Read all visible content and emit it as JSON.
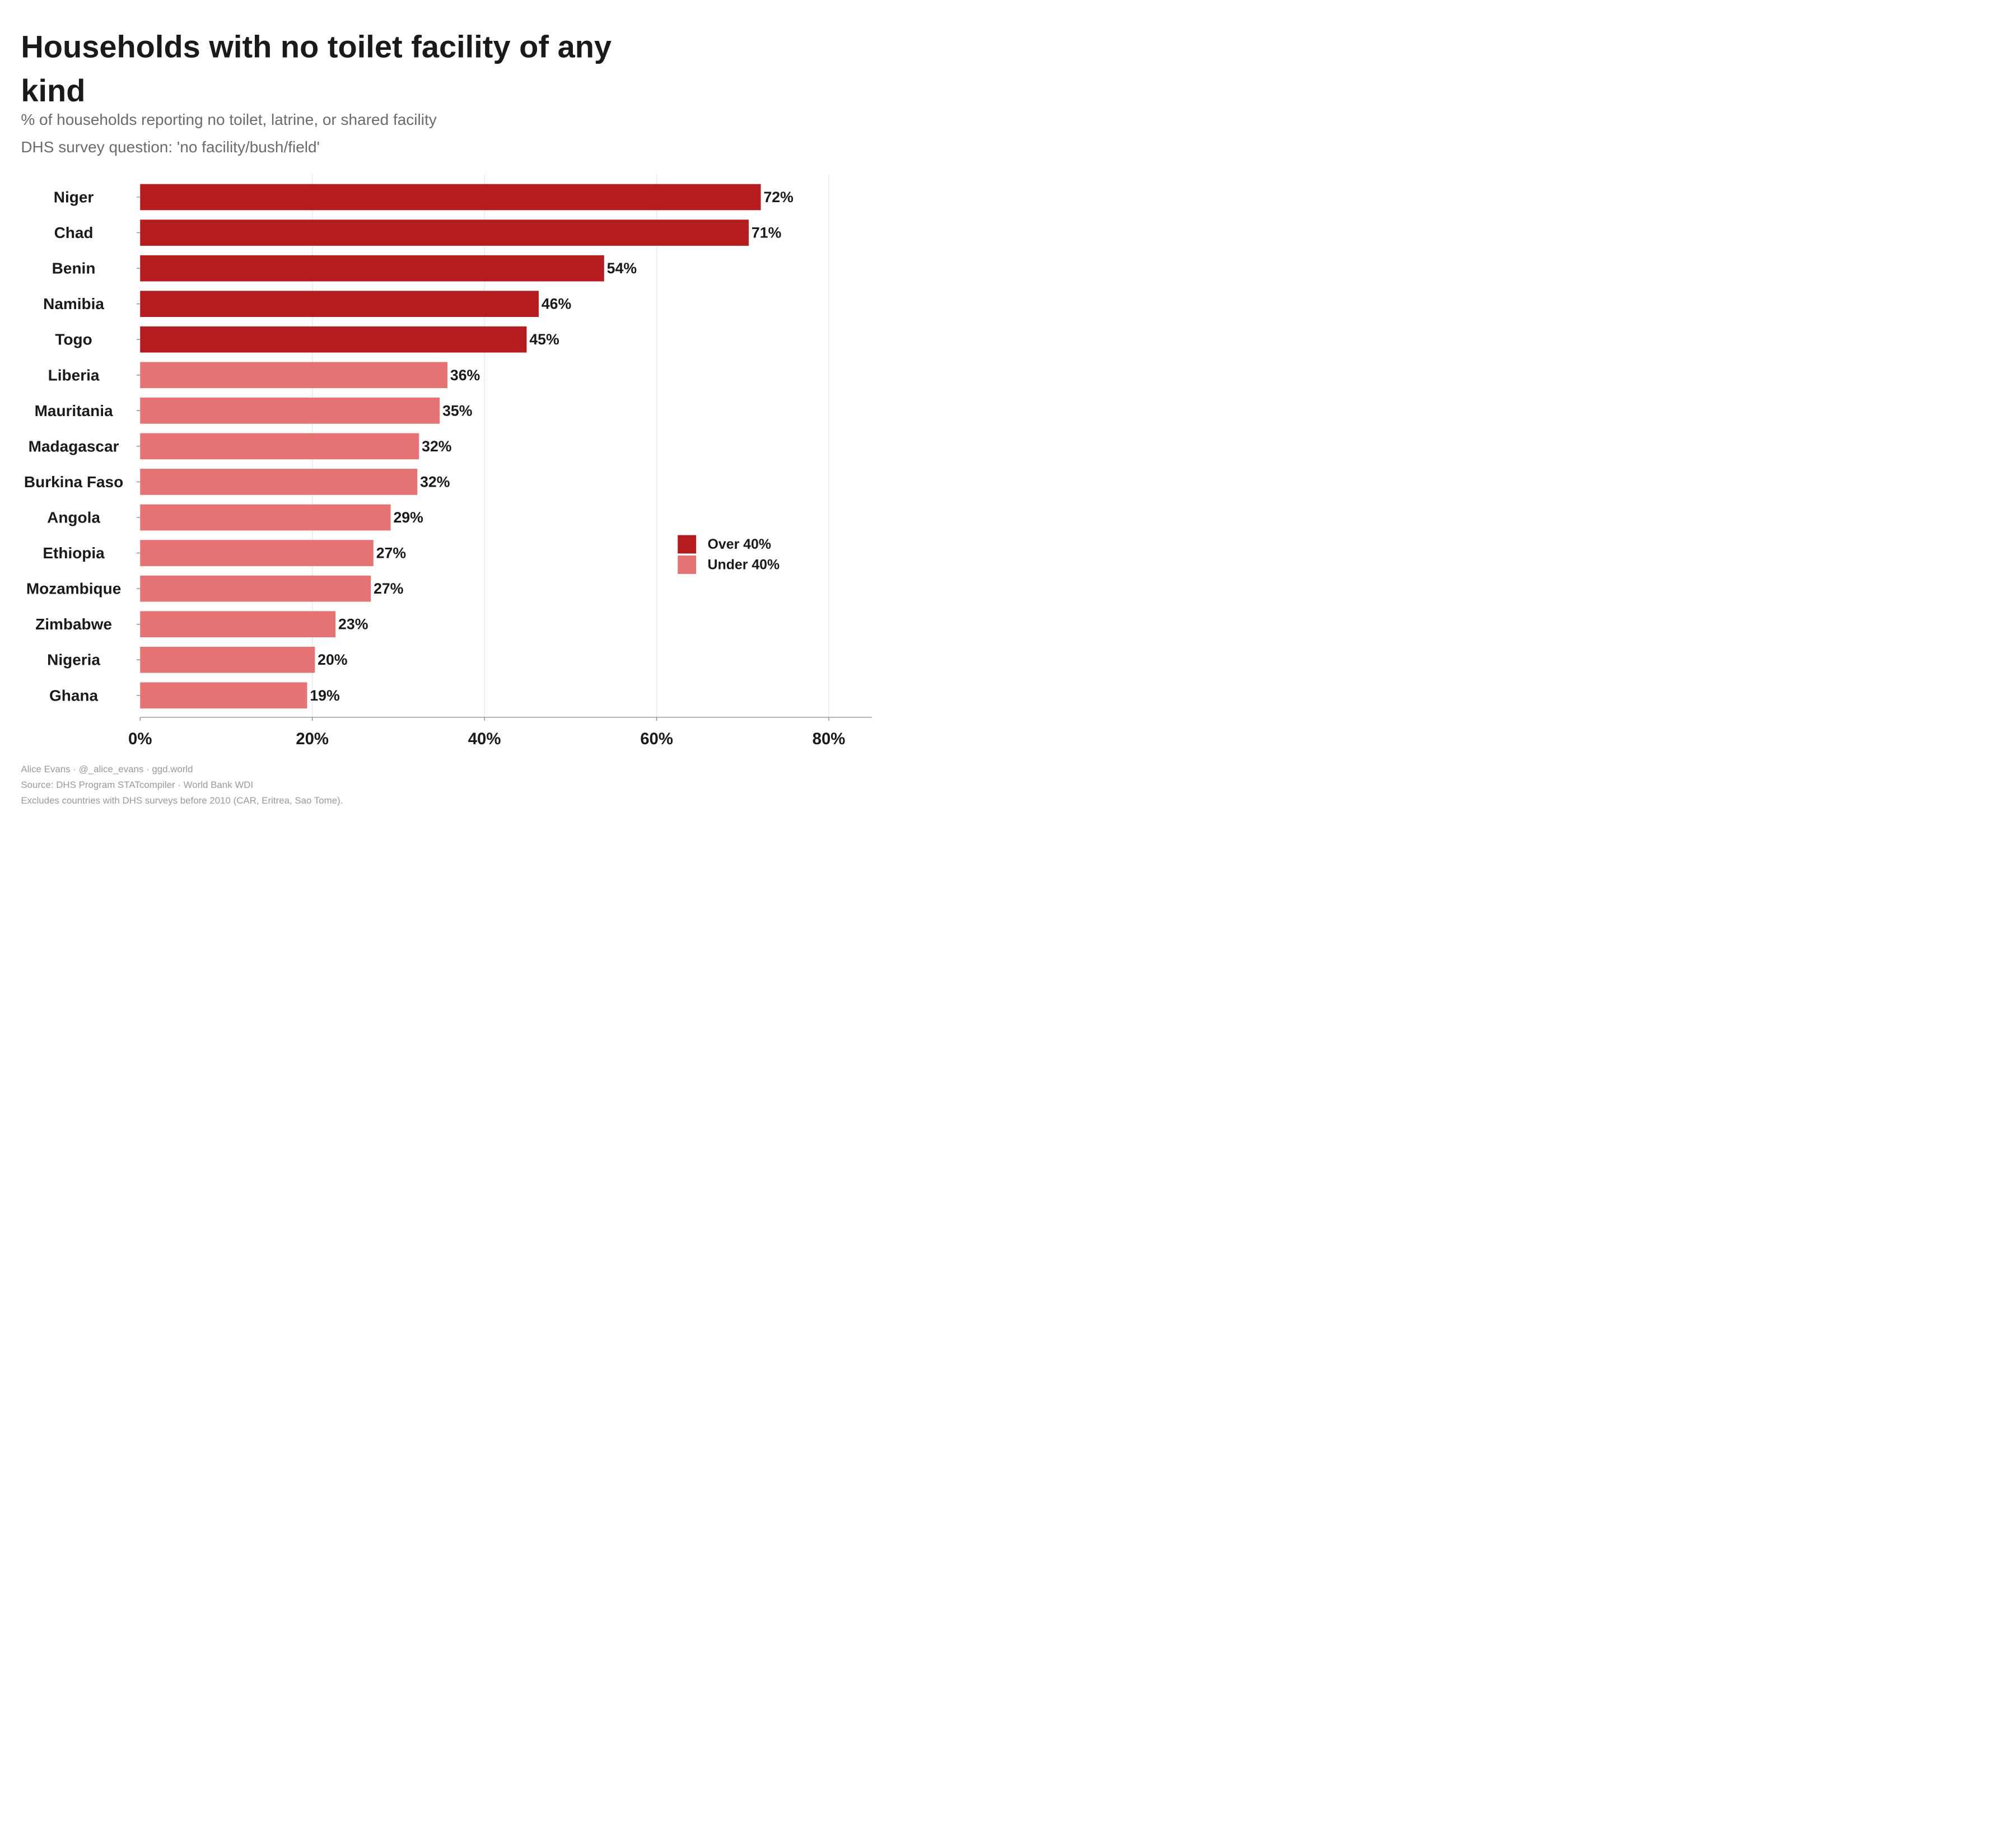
{
  "header": {
    "title": "Households with no toilet facility of any kind",
    "subtitle1": "% of households reporting no toilet, latrine, or shared facility",
    "subtitle2": "DHS survey question: 'no facility/bush/field'"
  },
  "colors": {
    "over": "#b51c1f",
    "under": "#e57373",
    "grid": "#e6e6e6",
    "axis": "#8a8a8a"
  },
  "chart_data": {
    "type": "bar",
    "orientation": "horizontal",
    "categories": [
      "Niger",
      "Chad",
      "Benin",
      "Namibia",
      "Togo",
      "Liberia",
      "Mauritania",
      "Madagascar",
      "Burkina Faso",
      "Angola",
      "Ethiopia",
      "Mozambique",
      "Zimbabwe",
      "Nigeria",
      "Ghana"
    ],
    "values": [
      72,
      71,
      54,
      46,
      45,
      36,
      35,
      32,
      32,
      29,
      27,
      27,
      23,
      20,
      19
    ],
    "exact_values": [
      72.1,
      70.7,
      53.9,
      46.3,
      44.9,
      35.7,
      34.8,
      32.4,
      32.2,
      29.1,
      27.1,
      26.8,
      22.7,
      20.3,
      19.4
    ],
    "groups": [
      "Over 40%",
      "Over 40%",
      "Over 40%",
      "Over 40%",
      "Over 40%",
      "Under 40%",
      "Under 40%",
      "Under 40%",
      "Under 40%",
      "Under 40%",
      "Under 40%",
      "Under 40%",
      "Under 40%",
      "Under 40%",
      "Under 40%"
    ],
    "value_labels": [
      "72%",
      "71%",
      "54%",
      "46%",
      "45%",
      "36%",
      "35%",
      "32%",
      "32%",
      "29%",
      "27%",
      "27%",
      "23%",
      "20%",
      "19%"
    ],
    "xlim": [
      0,
      85
    ],
    "xticks": [
      0,
      20,
      40,
      60,
      80
    ],
    "xtick_labels": [
      "0%",
      "20%",
      "40%",
      "60%",
      "80%"
    ],
    "xlabel": "",
    "ylabel": "",
    "grid": "vertical",
    "legend": {
      "position": "right",
      "entries": [
        {
          "label": "Over 40%",
          "color": "#b51c1f"
        },
        {
          "label": "Under 40%",
          "color": "#e57373"
        }
      ]
    }
  },
  "footer": {
    "credit": "Alice Evans · @_alice_evans · ggd.world",
    "source": "Source: DHS Program STATcompiler · World Bank WDI",
    "note": "Excludes countries with DHS surveys before 2010 (CAR, Eritrea, Sao Tome)."
  }
}
